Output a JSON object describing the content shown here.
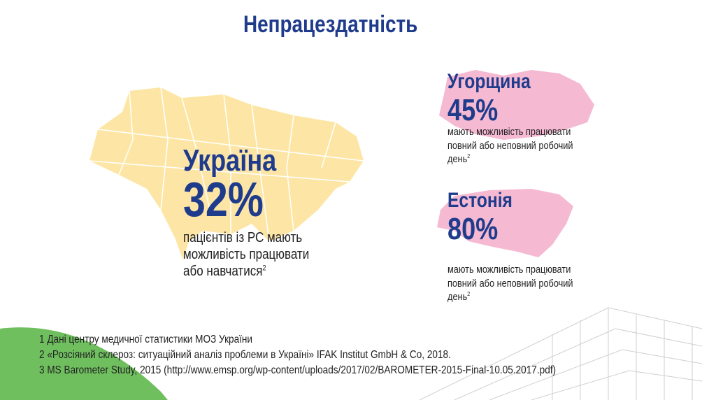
{
  "title": "Непрацездатність",
  "ukraine": {
    "name": "Україна",
    "percent": "32%",
    "lines": [
      "пацієнтів із РС мають",
      "можливість працювати",
      "або навчатися"
    ],
    "note": "2"
  },
  "hungary": {
    "name": "Угорщина",
    "percent": "45%",
    "lines": [
      "мають можливість працювати",
      "повний або неповний робочий",
      "день"
    ],
    "note": "2"
  },
  "estonia": {
    "name": "Естонія",
    "percent": "80%",
    "lines": [
      "мають можливість працювати",
      "повний або неповний робочий",
      "день"
    ],
    "note": "2"
  },
  "footnotes": [
    "1 Дані центру медичної статистики МОЗ України",
    "2 «Розсіяний склероз: ситуаційний аналіз проблеми в Україні» IFAK Institut GmbH & Co, 2018.",
    "3 MS Barometer Study, 2015 (http://www.emsp.org/wp-content/uploads/2017/02/BAROMETER-2015-Final-10.05.2017.pdf)"
  ]
}
